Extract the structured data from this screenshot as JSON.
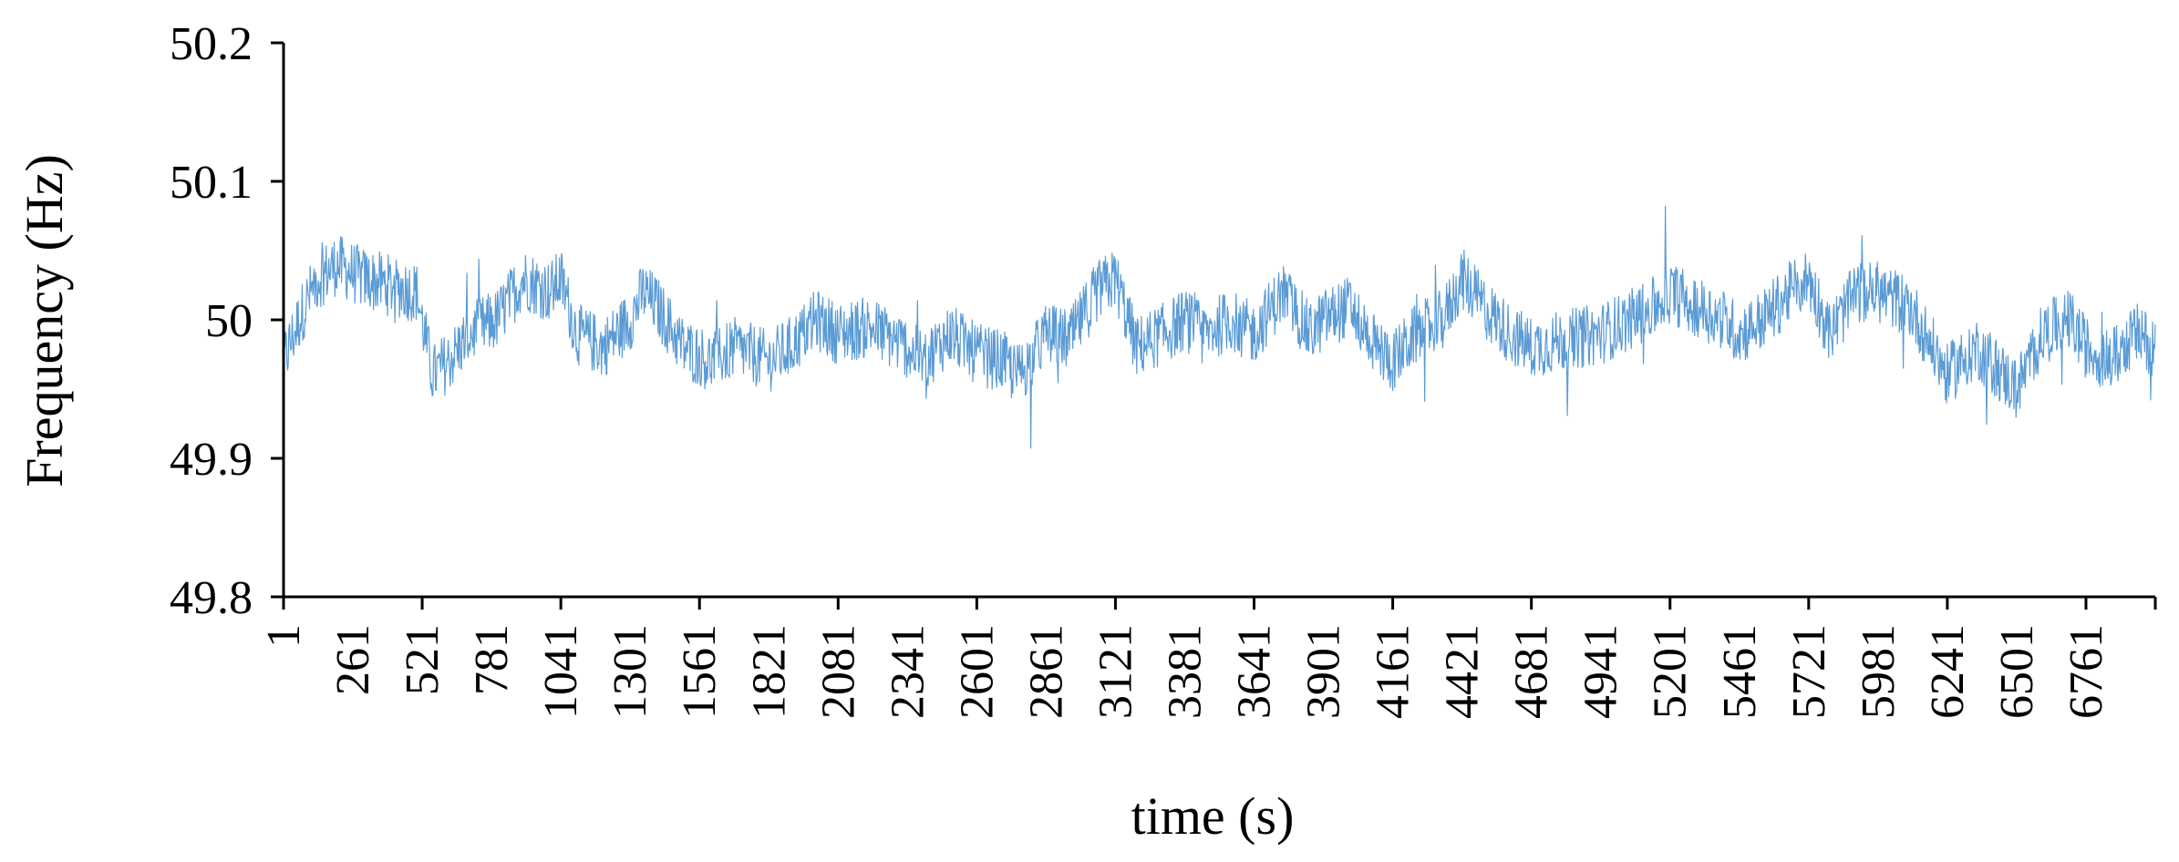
{
  "chart_data": {
    "type": "line",
    "title": "",
    "xlabel": "time (s)",
    "ylabel": "Frequency (Hz)",
    "ylim": [
      49.8,
      50.2
    ],
    "xlim": [
      1,
      7021
    ],
    "yticks": [
      "49.8",
      "49.9",
      "50",
      "50.1",
      "50.2"
    ],
    "xticks": [
      "1",
      "261",
      "521",
      "781",
      "1041",
      "1301",
      "1561",
      "1821",
      "2081",
      "2341",
      "2601",
      "2861",
      "3121",
      "3381",
      "3641",
      "3901",
      "4161",
      "4421",
      "4681",
      "4941",
      "5201",
      "5461",
      "5721",
      "5981",
      "6241",
      "6501",
      "6761"
    ],
    "grid": false,
    "legend": "none",
    "line_color": "#5B9BD5",
    "series": [
      {
        "x": [
          1,
          40,
          80,
          130,
          200,
          300,
          400,
          500,
          560,
          620,
          700,
          800,
          900,
          1000,
          1041,
          1100,
          1200,
          1301,
          1350,
          1400,
          1500,
          1600,
          1700,
          1821,
          1900,
          2000,
          2081,
          2200,
          2341,
          2400,
          2500,
          2601,
          2700,
          2750,
          2800,
          2861,
          2950,
          3050,
          3121,
          3200,
          3300,
          3381,
          3450,
          3550,
          3641,
          3750,
          3850,
          3901,
          4000,
          4100,
          4161,
          4250,
          4350,
          4421,
          4500,
          4600,
          4681,
          4800,
          4941,
          5050,
          5150,
          5201,
          5300,
          5400,
          5461,
          5550,
          5650,
          5721,
          5800,
          5900,
          5981,
          6100,
          6241,
          6350,
          6450,
          6501,
          6600,
          6700,
          6761,
          6850,
          6950,
          7021
        ],
        "y": [
          49.97,
          49.99,
          50.01,
          50.03,
          50.04,
          50.03,
          50.025,
          50.02,
          49.96,
          49.97,
          49.99,
          50.0,
          50.03,
          50.02,
          50.03,
          49.99,
          49.98,
          50.0,
          50.02,
          50.01,
          49.98,
          49.97,
          49.98,
          49.97,
          49.98,
          50.0,
          49.99,
          49.995,
          49.98,
          49.97,
          49.99,
          49.975,
          49.97,
          49.96,
          49.97,
          49.99,
          49.985,
          50.02,
          50.03,
          49.98,
          49.99,
          50.0,
          49.99,
          50.0,
          49.99,
          50.02,
          49.99,
          50.0,
          50.01,
          49.98,
          49.97,
          49.99,
          50.0,
          50.03,
          50.01,
          49.99,
          49.98,
          49.985,
          49.99,
          50.0,
          50.01,
          50.02,
          50.01,
          50.0,
          49.99,
          50.0,
          50.02,
          50.03,
          49.99,
          50.02,
          50.02,
          50.01,
          49.96,
          49.98,
          49.96,
          49.95,
          49.99,
          50.0,
          49.98,
          49.97,
          49.99,
          49.98
        ]
      }
    ]
  }
}
